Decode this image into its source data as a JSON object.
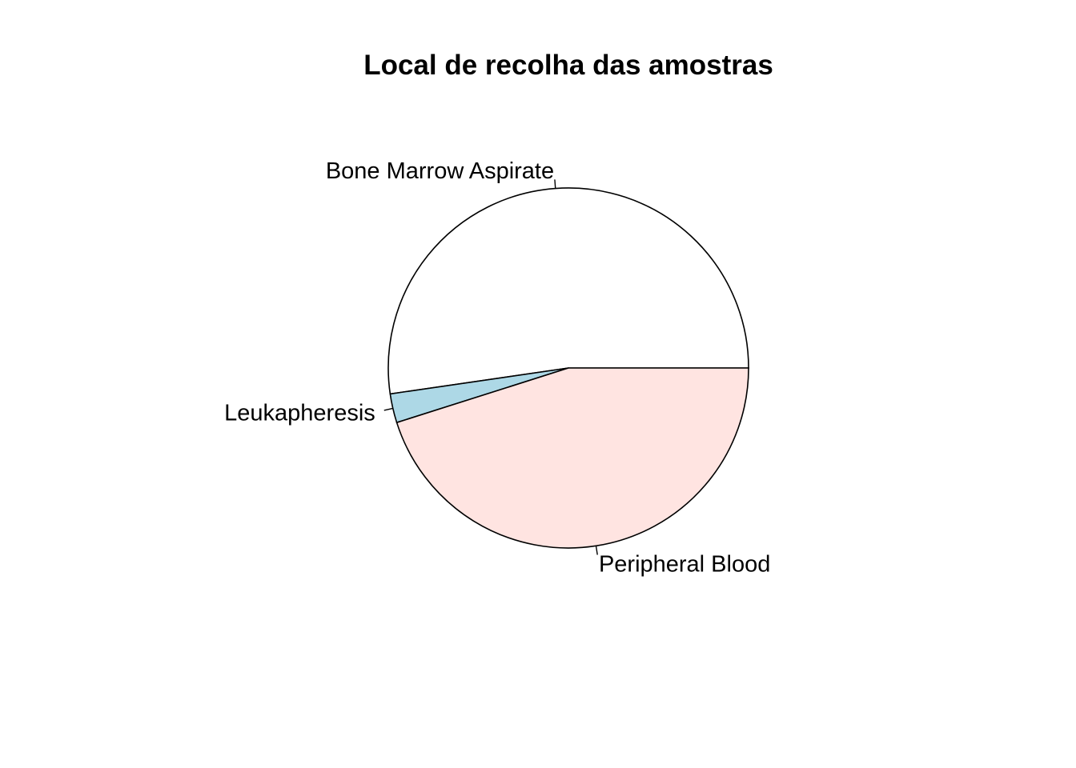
{
  "chart_data": {
    "type": "pie",
    "title": "Local de recolha das amostras",
    "start_angle_deg": 0,
    "direction": "counterclockwise",
    "slices": [
      {
        "label": "Bone Marrow Aspirate",
        "value": 52.3,
        "color": "#ffffff"
      },
      {
        "label": "Leukapheresis",
        "value": 2.6,
        "color": "#add8e6"
      },
      {
        "label": "Peripheral Blood",
        "value": 45.1,
        "color": "#ffe4e1"
      }
    ],
    "border_color": "#000000"
  }
}
